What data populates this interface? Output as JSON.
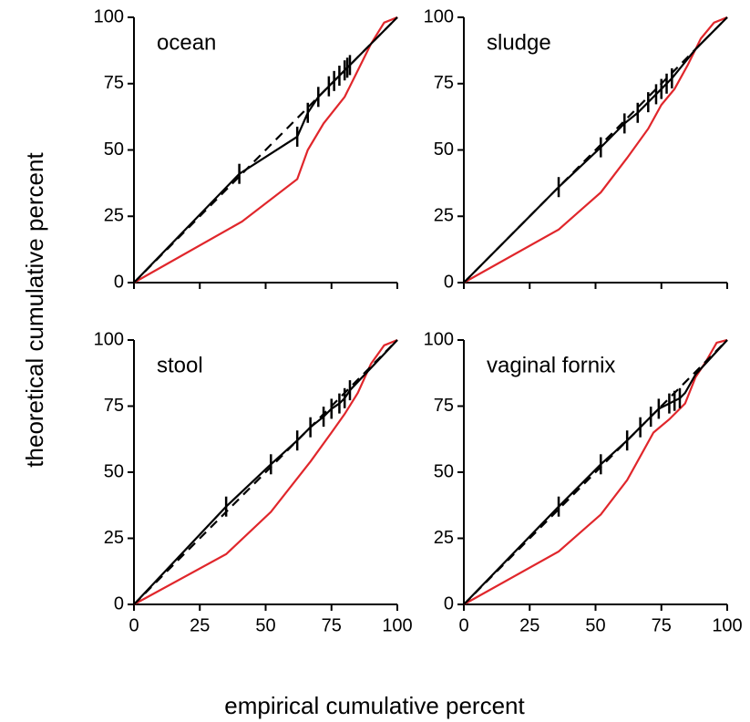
{
  "xlabel": "empirical cumulative percent",
  "ylabel": "theoretical cumulative percent",
  "chart_data": [
    {
      "type": "line",
      "title": "ocean",
      "xlim": [
        0,
        100
      ],
      "ylim": [
        0,
        100
      ],
      "xticks": [
        0,
        25,
        50,
        75,
        100
      ],
      "yticks": [
        0,
        25,
        50,
        75,
        100
      ],
      "series": [
        {
          "color": "#e0262b",
          "dash": false,
          "x": [
            0,
            41,
            62,
            66,
            72,
            80,
            85,
            90,
            95,
            100
          ],
          "values": [
            0,
            23,
            39,
            50,
            60,
            70,
            80,
            90,
            98,
            100
          ]
        },
        {
          "color": "#000000",
          "dash": true,
          "x": [
            0,
            100
          ],
          "values": [
            0,
            100
          ]
        },
        {
          "color": "#000000",
          "dash": false,
          "x": [
            0,
            40,
            62,
            66,
            70,
            75,
            80,
            85,
            90,
            100
          ],
          "values": [
            0,
            41,
            55,
            64,
            70,
            75,
            80,
            85,
            90,
            100
          ]
        }
      ],
      "markers": {
        "color": "#000000",
        "x": [
          40,
          62,
          66,
          70,
          74,
          76,
          78,
          80,
          81,
          82
        ],
        "values": [
          41,
          55,
          64,
          70,
          74,
          76,
          78,
          80,
          81,
          82
        ]
      }
    },
    {
      "type": "line",
      "title": "sludge",
      "xlim": [
        0,
        100
      ],
      "ylim": [
        0,
        100
      ],
      "xticks": [
        0,
        25,
        50,
        75,
        100
      ],
      "yticks": [
        0,
        25,
        50,
        75,
        100
      ],
      "series": [
        {
          "color": "#e0262b",
          "dash": false,
          "x": [
            0,
            36,
            52,
            62,
            70,
            75,
            80,
            85,
            90,
            95,
            100
          ],
          "values": [
            0,
            20,
            34,
            47,
            58,
            67,
            73,
            82,
            92,
            98,
            100
          ]
        },
        {
          "color": "#000000",
          "dash": true,
          "x": [
            0,
            100
          ],
          "values": [
            0,
            100
          ]
        },
        {
          "color": "#000000",
          "dash": false,
          "x": [
            0,
            36,
            52,
            61,
            66,
            70,
            73,
            75,
            77,
            79,
            88,
            100
          ],
          "values": [
            0,
            36,
            51,
            60,
            64,
            68,
            71,
            73,
            75,
            77,
            88,
            100
          ]
        }
      ],
      "markers": {
        "color": "#000000",
        "x": [
          36,
          52,
          61,
          66,
          70,
          73,
          75,
          77,
          79
        ],
        "values": [
          36,
          51,
          60,
          64,
          68,
          71,
          73,
          75,
          77
        ]
      }
    },
    {
      "type": "line",
      "title": "stool",
      "xlim": [
        0,
        100
      ],
      "ylim": [
        0,
        100
      ],
      "xticks": [
        0,
        25,
        50,
        75,
        100
      ],
      "yticks": [
        0,
        25,
        50,
        75,
        100
      ],
      "series": [
        {
          "color": "#e0262b",
          "dash": false,
          "x": [
            0,
            35,
            52,
            67,
            75,
            80,
            85,
            90,
            95,
            100
          ],
          "values": [
            0,
            19,
            35,
            54,
            65,
            72,
            80,
            91,
            98,
            100
          ]
        },
        {
          "color": "#000000",
          "dash": true,
          "x": [
            0,
            100
          ],
          "values": [
            0,
            100
          ]
        },
        {
          "color": "#000000",
          "dash": false,
          "x": [
            0,
            35,
            52,
            62,
            67,
            72,
            75,
            78,
            80,
            82,
            100
          ],
          "values": [
            0,
            37,
            53,
            62,
            67,
            71,
            74,
            76,
            78,
            81,
            100
          ]
        }
      ],
      "markers": {
        "color": "#000000",
        "x": [
          35,
          52,
          62,
          67,
          72,
          75,
          78,
          80,
          82
        ],
        "values": [
          37,
          53,
          62,
          67,
          71,
          74,
          76,
          78,
          81
        ]
      }
    },
    {
      "type": "line",
      "title": "vaginal fornix",
      "xlim": [
        0,
        100
      ],
      "ylim": [
        0,
        100
      ],
      "xticks": [
        0,
        25,
        50,
        75,
        100
      ],
      "yticks": [
        0,
        25,
        50,
        75,
        100
      ],
      "series": [
        {
          "color": "#e0262b",
          "dash": false,
          "x": [
            0,
            36,
            52,
            62,
            72,
            78,
            84,
            88,
            92,
            96,
            100
          ],
          "values": [
            0,
            20,
            34,
            47,
            65,
            70,
            76,
            86,
            92,
            99,
            100
          ]
        },
        {
          "color": "#000000",
          "dash": true,
          "x": [
            0,
            100
          ],
          "values": [
            0,
            100
          ]
        },
        {
          "color": "#000000",
          "dash": false,
          "x": [
            0,
            36,
            52,
            62,
            67,
            71,
            74,
            78,
            80,
            82,
            84,
            88,
            100
          ],
          "values": [
            0,
            37,
            53,
            62,
            67,
            71,
            74,
            76,
            77,
            78,
            80,
            87,
            100
          ]
        }
      ],
      "markers": {
        "color": "#000000",
        "x": [
          36,
          52,
          62,
          67,
          71,
          74,
          78,
          80,
          82
        ],
        "values": [
          37,
          53,
          62,
          67,
          71,
          74,
          76,
          77,
          78
        ]
      }
    }
  ]
}
